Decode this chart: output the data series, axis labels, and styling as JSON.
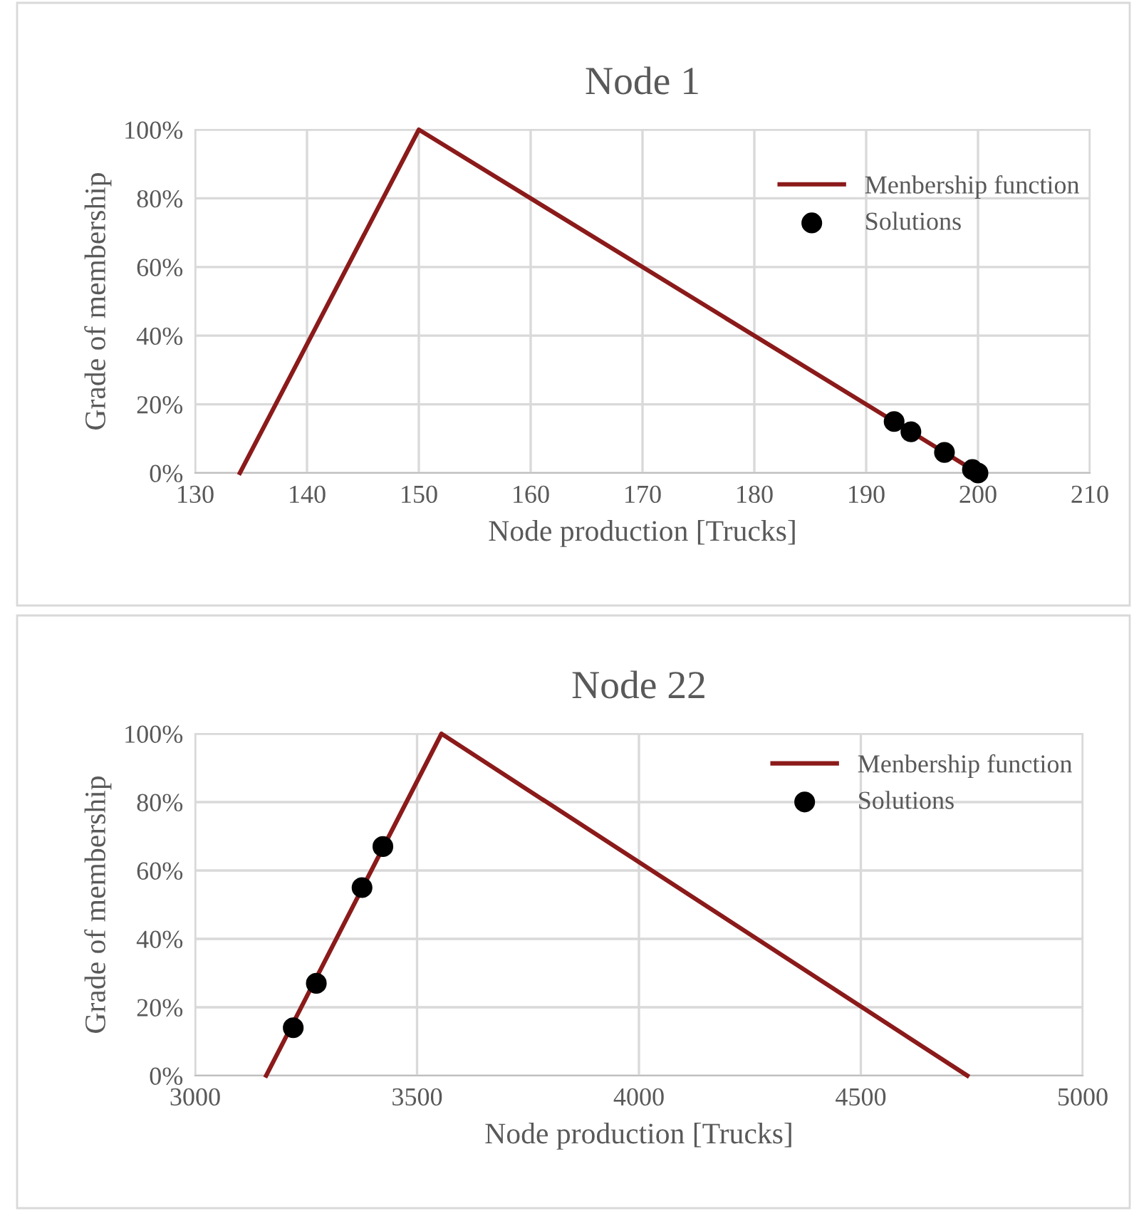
{
  "chart_data": [
    {
      "type": "line",
      "title": "Node 1",
      "xlabel": "Node production [Trucks]",
      "ylabel": "Grade of membership",
      "xlim": [
        130,
        210
      ],
      "xticks": [
        130,
        140,
        150,
        160,
        170,
        180,
        190,
        200,
        210
      ],
      "ylim": [
        0,
        100
      ],
      "yticks": [
        {
          "value": 0,
          "label": "0%"
        },
        {
          "value": 20,
          "label": "20%"
        },
        {
          "value": 40,
          "label": "40%"
        },
        {
          "value": 60,
          "label": "60%"
        },
        {
          "value": 80,
          "label": "80%"
        },
        {
          "value": 100,
          "label": "100%"
        }
      ],
      "grid": true,
      "legend": "right",
      "series": [
        {
          "name": "Menbership function",
          "color": "#8b1a1a",
          "marker": "none",
          "x": [
            134,
            150,
            200
          ],
          "values": [
            0,
            100,
            0
          ]
        },
        {
          "name": "Solutions",
          "type": "scatter",
          "color": "#000000",
          "marker": "circle",
          "x": [
            192.5,
            194,
            197,
            199.5,
            200
          ],
          "values": [
            15,
            12,
            6,
            1,
            0
          ]
        }
      ]
    },
    {
      "type": "line",
      "title": "Node 22",
      "xlabel": "Node production [Trucks]",
      "ylabel": "Grade of membership",
      "xlim": [
        3000,
        5000
      ],
      "xticks": [
        3000,
        3500,
        4000,
        4500,
        5000
      ],
      "ylim": [
        0,
        100
      ],
      "yticks": [
        {
          "value": 0,
          "label": "0%"
        },
        {
          "value": 20,
          "label": "20%"
        },
        {
          "value": 40,
          "label": "40%"
        },
        {
          "value": 60,
          "label": "60%"
        },
        {
          "value": 80,
          "label": "80%"
        },
        {
          "value": 100,
          "label": "100%"
        }
      ],
      "grid": true,
      "legend": "top right",
      "series": [
        {
          "name": "Menbership function",
          "color": "#8b1a1a",
          "marker": "none",
          "x": [
            3160,
            3555,
            4740
          ],
          "values": [
            0,
            100,
            0
          ]
        },
        {
          "name": "Solutions",
          "type": "scatter",
          "color": "#000000",
          "marker": "circle",
          "x": [
            3221,
            3273,
            3376,
            3423
          ],
          "values": [
            14,
            27,
            55,
            67
          ]
        }
      ]
    }
  ]
}
